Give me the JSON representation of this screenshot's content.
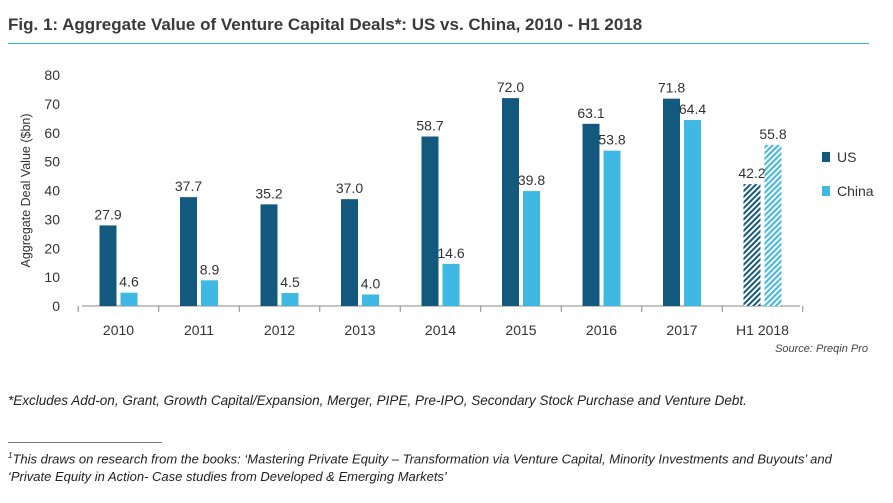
{
  "title": "Fig. 1: Aggregate Value of Venture Capital Deals*: US vs. China, 2010 - H1 2018",
  "colors": {
    "us": "#13587d",
    "china": "#3fb8e4",
    "title_rule": "#29b6c8",
    "axis": "#888888"
  },
  "chart_data": {
    "type": "bar",
    "categories": [
      "2010",
      "2011",
      "2012",
      "2013",
      "2014",
      "2015",
      "2016",
      "2017",
      "H1 2018"
    ],
    "series": [
      {
        "name": "US",
        "values": [
          27.9,
          37.7,
          35.2,
          37.0,
          58.7,
          72.0,
          63.1,
          71.8,
          42.2
        ]
      },
      {
        "name": "China",
        "values": [
          4.6,
          8.9,
          4.5,
          4.0,
          14.6,
          39.8,
          53.8,
          64.4,
          55.8
        ]
      }
    ],
    "ylabel": "Aggregate Deal Value ($bn)",
    "ylim": [
      0,
      80
    ],
    "yticks": [
      0,
      10,
      20,
      30,
      40,
      50,
      60,
      70,
      80
    ],
    "grid": false,
    "legend_position": "right",
    "hatched_categories": [
      "H1 2018"
    ],
    "source": "Source: Preqin Pro"
  },
  "footnote": "*Excludes Add-on, Grant, Growth Capital/Expansion, Merger, PIPE, Pre-IPO, Secondary Stock Purchase and Venture Debt.",
  "footnote2": {
    "marker": "1",
    "text": "This draws on research from the books: ‘Mastering Private Equity – Transformation via Venture Capital, Minority Investments and Buyouts’ and ‘Private Equity in Action- Case studies from Developed & Emerging Markets’"
  }
}
